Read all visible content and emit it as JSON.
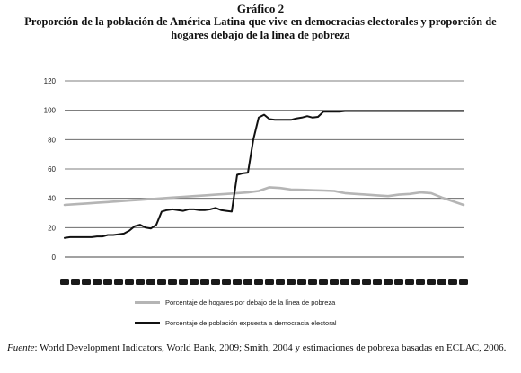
{
  "figure": {
    "number": "Gráfico 2",
    "title": "Proporción de la población de América Latina que vive en democracias electorales y proporción de hogares debajo de la línea de pobreza"
  },
  "chart_data": {
    "type": "line",
    "title": "",
    "xlabel": "",
    "ylabel": "",
    "ylim": [
      0,
      120
    ],
    "yticks": [
      0,
      20,
      40,
      60,
      80,
      100,
      120
    ],
    "grid": "horizontal",
    "legend_position": "bottom",
    "x_tick_labels_legible": false,
    "x_tick_count": 38,
    "series": [
      {
        "name": "Porcentaje de hogares por debajo de la línea de pobreza",
        "color": "#b5b5b5",
        "x": [
          0,
          1,
          2,
          3,
          4,
          5,
          6,
          7,
          8,
          9,
          10,
          11,
          12,
          13,
          14,
          15,
          16,
          17,
          18,
          19,
          20,
          21,
          22,
          23,
          24,
          25,
          26,
          27,
          28,
          29,
          30,
          31,
          32,
          33,
          34,
          35,
          36,
          37
        ],
        "values": [
          35.5,
          36,
          36.5,
          37,
          37.5,
          38,
          38.5,
          39,
          39.5,
          40,
          40.5,
          41,
          41.5,
          42,
          42.5,
          43,
          43.5,
          44,
          45,
          47.5,
          47,
          46,
          45.8,
          45.5,
          45.3,
          45,
          43.5,
          43,
          42.5,
          42,
          41.5,
          42.5,
          43,
          44,
          43.5,
          40.5,
          38,
          35.5
        ]
      },
      {
        "name": "Porcentaje de población expuesta a democracia electoral",
        "color": "#111111",
        "x": [
          0,
          0.5,
          1,
          1.5,
          2,
          2.5,
          3,
          3.5,
          4,
          4.5,
          5,
          5.5,
          6,
          6.5,
          7,
          7.5,
          8,
          8.5,
          9,
          9.5,
          10,
          10.5,
          11,
          11.5,
          12,
          12.5,
          13,
          13.5,
          14,
          14.5,
          15,
          15.5,
          16,
          16.5,
          17,
          17.5,
          18,
          18.5,
          19,
          19.5,
          20,
          20.5,
          21,
          21.5,
          22,
          22.5,
          23,
          23.5,
          24,
          24.5,
          25,
          25.5,
          26,
          26.5,
          27,
          27.5,
          28,
          28.5,
          29,
          29.5,
          30,
          30.5,
          31,
          31.5,
          32,
          32.5,
          33,
          33.5,
          34,
          34.5,
          35,
          35.5,
          36,
          36.5,
          37
        ],
        "values": [
          13,
          13.5,
          13.5,
          13.5,
          13.5,
          13.5,
          14,
          14,
          15,
          15,
          15.5,
          16,
          18,
          21,
          22,
          20,
          19.5,
          22,
          31,
          32,
          32.5,
          32,
          31.5,
          32.5,
          32.5,
          32,
          32,
          32.5,
          33.5,
          32,
          31.5,
          31,
          56,
          57,
          57.5,
          80,
          95,
          97,
          94,
          93.5,
          93.5,
          93.5,
          93.5,
          94.5,
          95,
          96,
          95,
          95.5,
          99,
          99,
          99,
          99,
          99.5,
          99.5,
          99.5,
          99.5,
          99.5,
          99.5,
          99.5,
          99.5,
          99.5,
          99.5,
          99.5,
          99.5,
          99.5,
          99.5,
          99.5,
          99.5,
          99.5,
          99.5,
          99.5,
          99.5,
          99.5,
          99.5,
          99.5
        ]
      }
    ]
  },
  "legend": {
    "items": [
      {
        "label": "Porcentaje de hogares por debajo de la línea de pobreza",
        "color": "#b5b5b5"
      },
      {
        "label": "Porcentaje de población expuesta a democracia electoral",
        "color": "#111111"
      }
    ]
  },
  "source": {
    "prefix": "Fuente",
    "text": ": World Development Indicators, World Bank, 2009; Smith, 2004 y estimaciones de pobreza basadas en ECLAC, 2006."
  }
}
